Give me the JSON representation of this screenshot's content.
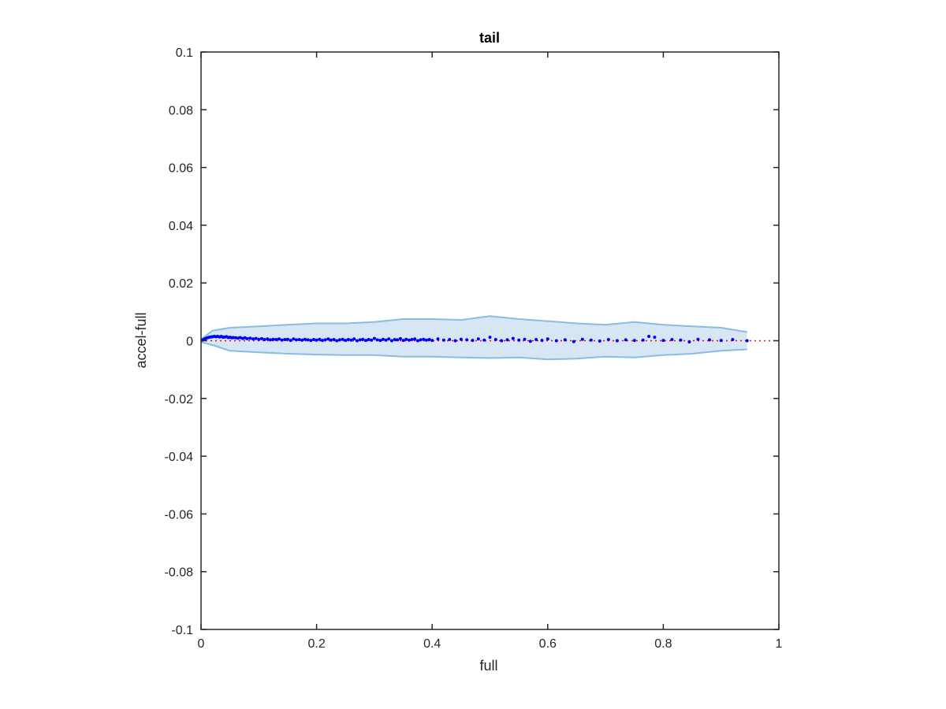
{
  "chart_data": {
    "type": "scatter",
    "title": "tail",
    "xlabel": "full",
    "ylabel": "accel-full",
    "xlim": [
      0,
      1
    ],
    "ylim": [
      -0.1,
      0.1
    ],
    "xticks": [
      "0",
      "0.2",
      "0.4",
      "0.6",
      "0.8",
      "1"
    ],
    "yticks": [
      "-0.1",
      "-0.08",
      "-0.06",
      "-0.04",
      "-0.02",
      "0",
      "0.02",
      "0.04",
      "0.06",
      "0.08",
      "0.1"
    ],
    "grid": false,
    "legend": "none",
    "colors": {
      "points": "#0000ff",
      "band_fill": "#d6e6f4",
      "band_edge": "#88bde0",
      "reference_line": "#ff0000",
      "axes": "#262626"
    },
    "reference_line": {
      "y": 0,
      "style": "dotted"
    },
    "band": {
      "x": [
        0,
        0.02,
        0.05,
        0.1,
        0.15,
        0.2,
        0.25,
        0.3,
        0.35,
        0.4,
        0.45,
        0.5,
        0.55,
        0.6,
        0.65,
        0.7,
        0.75,
        0.8,
        0.85,
        0.9,
        0.945
      ],
      "upper": [
        0.0005,
        0.0035,
        0.0045,
        0.005,
        0.0055,
        0.006,
        0.006,
        0.0065,
        0.0075,
        0.0075,
        0.0072,
        0.0085,
        0.0075,
        0.0068,
        0.006,
        0.0055,
        0.0065,
        0.0055,
        0.005,
        0.0045,
        0.003
      ],
      "lower": [
        -0.0005,
        -0.0015,
        -0.0035,
        -0.004,
        -0.0045,
        -0.0048,
        -0.005,
        -0.005,
        -0.0055,
        -0.0055,
        -0.0058,
        -0.006,
        -0.0058,
        -0.0065,
        -0.0062,
        -0.0055,
        -0.0058,
        -0.005,
        -0.0045,
        -0.0035,
        -0.003
      ]
    },
    "series": [
      {
        "x": [
          0.002,
          0.005,
          0.008,
          0.011,
          0.014,
          0.017,
          0.02,
          0.023,
          0.026,
          0.029,
          0.032,
          0.035,
          0.038,
          0.041,
          0.044,
          0.047,
          0.05,
          0.053,
          0.056,
          0.06,
          0.064,
          0.068,
          0.072,
          0.076,
          0.08,
          0.085,
          0.09,
          0.095,
          0.1,
          0.105,
          0.11,
          0.115,
          0.12,
          0.125,
          0.13,
          0.135,
          0.14,
          0.145,
          0.15,
          0.155,
          0.16,
          0.165,
          0.17,
          0.175,
          0.18,
          0.185,
          0.19,
          0.195,
          0.2,
          0.205,
          0.21,
          0.215,
          0.22,
          0.225,
          0.23,
          0.235,
          0.24,
          0.245,
          0.25,
          0.255,
          0.26,
          0.265,
          0.27,
          0.275,
          0.28,
          0.285,
          0.29,
          0.295,
          0.3,
          0.305,
          0.31,
          0.315,
          0.32,
          0.325,
          0.33,
          0.335,
          0.34,
          0.345,
          0.35,
          0.355,
          0.36,
          0.365,
          0.37,
          0.375,
          0.38,
          0.385,
          0.39,
          0.395,
          0.4,
          0.41,
          0.42,
          0.43,
          0.44,
          0.45,
          0.46,
          0.47,
          0.48,
          0.49,
          0.5,
          0.51,
          0.52,
          0.53,
          0.54,
          0.55,
          0.56,
          0.57,
          0.58,
          0.59,
          0.6,
          0.615,
          0.63,
          0.645,
          0.66,
          0.675,
          0.69,
          0.705,
          0.72,
          0.735,
          0.75,
          0.765,
          0.775,
          0.785,
          0.8,
          0.815,
          0.83,
          0.845,
          0.86,
          0.88,
          0.9,
          0.92,
          0.945
        ],
        "y": [
          0.0002,
          0.0005,
          0.0008,
          0.001,
          0.0012,
          0.0013,
          0.0014,
          0.0015,
          0.0014,
          0.0015,
          0.0013,
          0.0015,
          0.0012,
          0.0013,
          0.0014,
          0.0011,
          0.0012,
          0.001,
          0.0011,
          0.001,
          0.0009,
          0.0011,
          0.0008,
          0.001,
          0.0007,
          0.0009,
          0.0006,
          0.0008,
          0.0005,
          0.0007,
          0.0004,
          0.0006,
          0.0003,
          0.0005,
          0.0004,
          0.0006,
          0.0002,
          0.0004,
          0.0005,
          0.0001,
          0.0006,
          0.0003,
          0.0004,
          0.0002,
          0.0005,
          0.0003,
          0.0001,
          0.0004,
          0.0002,
          0.0005,
          0.0001,
          0.0003,
          0.0006,
          0.0002,
          0.0004,
          0.0,
          0.0003,
          0.0005,
          0.0001,
          0.0004,
          0.0002,
          0.0006,
          0.0,
          0.0003,
          0.0005,
          0.0001,
          0.0004,
          0.0002,
          0.0008,
          0.0003,
          0.0001,
          0.0005,
          0.0002,
          0.0006,
          0.0,
          0.0004,
          0.0003,
          0.0007,
          0.0001,
          0.0005,
          0.0002,
          0.0004,
          0.0006,
          0.0,
          0.0003,
          0.0005,
          0.0002,
          0.0004,
          0.0001,
          0.0006,
          0.0002,
          0.0004,
          0.0,
          0.0005,
          0.0003,
          0.0001,
          0.0006,
          0.0002,
          0.0012,
          0.0004,
          0.0,
          0.0003,
          0.0008,
          0.0002,
          0.0005,
          -0.0002,
          0.0004,
          0.0001,
          0.0006,
          0.0,
          0.0003,
          -0.0003,
          0.0005,
          0.0002,
          -0.0001,
          0.0004,
          0.0,
          0.0003,
          0.0001,
          0.0002,
          0.0015,
          0.0012,
          0.0001,
          0.0004,
          0.0002,
          -0.0004,
          0.0005,
          0.0003,
          0.0001,
          0.0004,
          0.0
        ]
      }
    ]
  }
}
